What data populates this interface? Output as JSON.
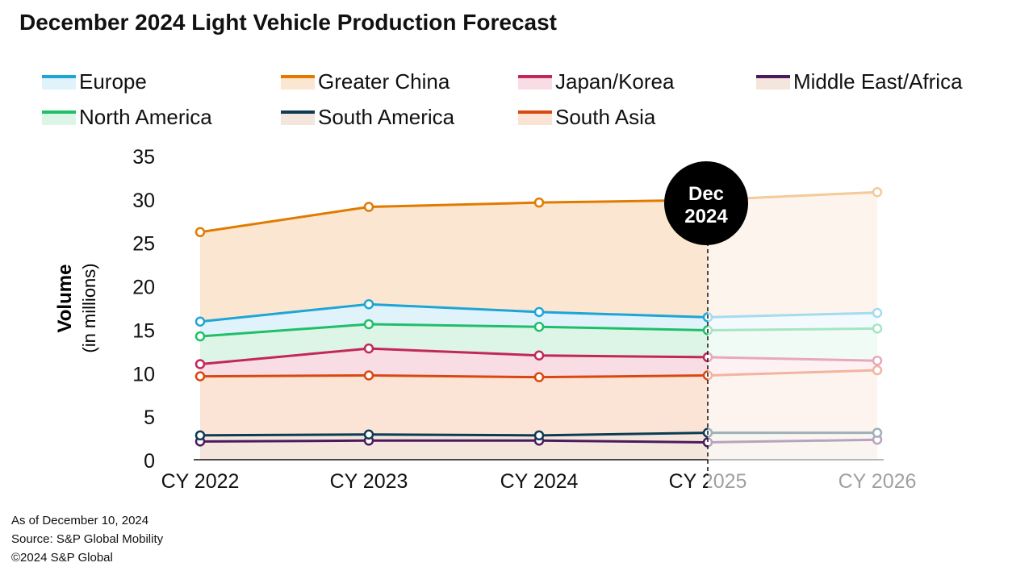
{
  "title": "December 2024 Light Vehicle Production Forecast",
  "footer": [
    "As of December 10, 2024",
    "Source: S&P Global Mobility",
    "©2024 S&P Global"
  ],
  "chart_data": {
    "type": "line",
    "title": "December 2024 Light Vehicle Production Forecast",
    "xlabel": "",
    "ylabel": "Volume",
    "ylabel_sub": "(in millions)",
    "categories": [
      "CY 2022",
      "CY 2023",
      "CY 2024",
      "CY 2025",
      "CY 2026"
    ],
    "yticks": [
      "0",
      "5",
      "10",
      "15",
      "20",
      "25",
      "30",
      "35"
    ],
    "ylim": [
      0,
      35
    ],
    "marker_label": [
      "Dec",
      "2024"
    ],
    "marker_at": "CY 2025",
    "legend_position": "top",
    "series": [
      {
        "name": "Greater China",
        "color": "#e07b00",
        "fill": "#fbe6d2",
        "values": [
          26.2,
          29.1,
          29.6,
          29.9,
          30.8
        ]
      },
      {
        "name": "Europe",
        "color": "#1ea5d6",
        "fill": "#e0f3fa",
        "values": [
          15.9,
          17.9,
          17.0,
          16.4,
          16.9
        ]
      },
      {
        "name": "North America",
        "color": "#1fbf6a",
        "fill": "#ddf5e6",
        "values": [
          14.2,
          15.6,
          15.3,
          14.9,
          15.1
        ]
      },
      {
        "name": "Japan/Korea",
        "color": "#c2275a",
        "fill": "#f9dde4",
        "values": [
          11.0,
          12.8,
          12.0,
          11.8,
          11.4
        ]
      },
      {
        "name": "South Asia",
        "color": "#d9480f",
        "fill": "#fbe3d6",
        "values": [
          9.6,
          9.7,
          9.5,
          9.7,
          10.3
        ]
      },
      {
        "name": "South America",
        "color": "#0d3b52",
        "fill": "#f4e6dc",
        "values": [
          2.8,
          2.9,
          2.8,
          3.1,
          3.1
        ]
      },
      {
        "name": "Middle East/Africa",
        "color": "#4b1a5e",
        "fill": "#f4e6dc",
        "values": [
          2.1,
          2.2,
          2.2,
          2.0,
          2.3
        ]
      }
    ],
    "legend_order": [
      "Europe",
      "Greater China",
      "Japan/Korea",
      "Middle East/Africa",
      "North America",
      "South America",
      "South Asia"
    ]
  }
}
